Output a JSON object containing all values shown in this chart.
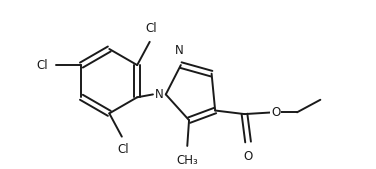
{
  "bg_color": "#ffffff",
  "line_color": "#1a1a1a",
  "line_width": 1.4,
  "font_size": 8.5,
  "fig_width": 3.76,
  "fig_height": 1.69,
  "dpi": 100,
  "xlim": [
    0.0,
    10.0
  ],
  "ylim": [
    0.0,
    4.5
  ]
}
